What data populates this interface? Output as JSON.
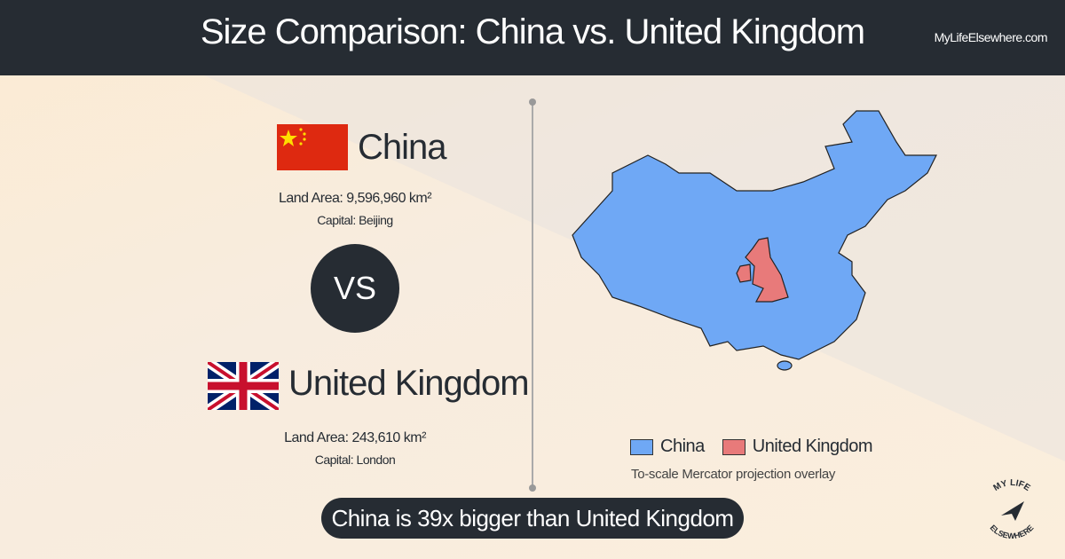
{
  "header": {
    "title": "Size Comparison: China vs. United Kingdom",
    "site": "MyLifeElsewhere.com"
  },
  "countries": [
    {
      "name": "China",
      "land_area": "Land Area: 9,596,960 km²",
      "capital": "Capital: Beijing",
      "color": "#6fa8f5"
    },
    {
      "name": "United Kingdom",
      "land_area": "Land Area: 243,610 km²",
      "capital": "Capital: London",
      "color": "#e87a7a"
    }
  ],
  "vs": "VS",
  "map": {
    "caption": "To-scale Mercator projection overlay"
  },
  "summary": "China is 39x bigger than United Kingdom",
  "logo": {
    "top": "MY LIFE",
    "bottom": "ELSEWHERE"
  }
}
